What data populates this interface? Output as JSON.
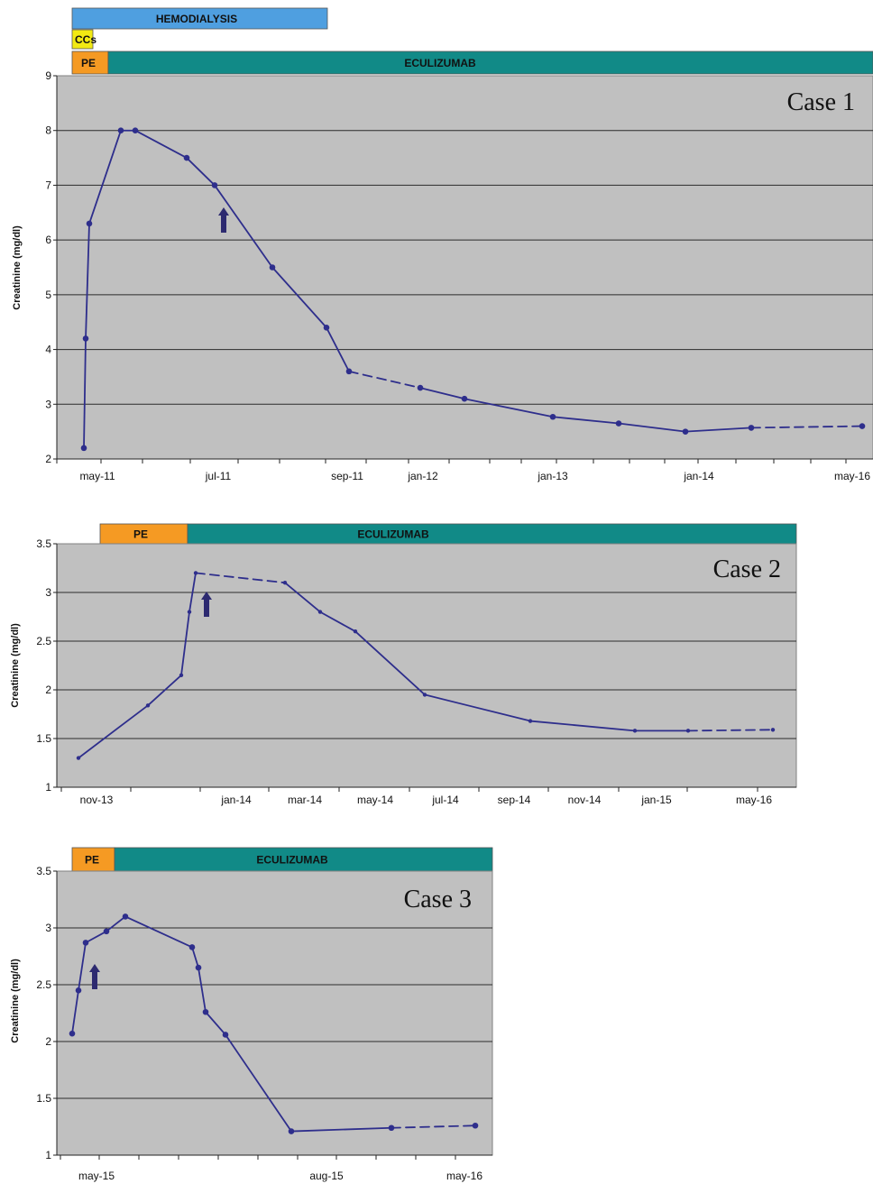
{
  "colors": {
    "plot_bg": "#c0c0c0",
    "line": "#2e2e8c",
    "grid": "#2b2b2b",
    "hemodialysis": "#4f9fe0",
    "ccs": "#f2ea12",
    "pe": "#f59a23",
    "eculizumab": "#118a87",
    "arrow": "#2d2a70"
  },
  "chart_data": [
    {
      "type": "line",
      "case_label": "Case 1",
      "ylabel": "Creatinine (mg/dl)",
      "ylim": [
        2,
        9
      ],
      "yticks": [
        "2",
        "3",
        "4",
        "5",
        "6",
        "7",
        "8",
        "9"
      ],
      "xtick_labels": [
        "may-11",
        "jul-11",
        "sep-11",
        "jan-12",
        "jan-13",
        "jan-14",
        "may-16"
      ],
      "treatment_bars": [
        {
          "label": "HEMODIALYSIS",
          "color": "hemodialysis"
        },
        {
          "label": "CCs",
          "color": "ccs"
        },
        {
          "label": "PE",
          "color": "pe"
        },
        {
          "label": "ECULIZUMAB",
          "color": "eculizumab"
        }
      ],
      "series": [
        {
          "values": [
            2.2,
            4.2,
            6.3,
            8.0,
            8.0,
            7.5,
            7.0,
            5.5,
            4.4,
            3.6,
            3.3,
            3.1,
            2.77,
            2.65,
            2.5,
            2.57,
            2.6
          ]
        }
      ],
      "dashed_segments": [
        [
          9,
          10
        ],
        [
          15,
          16
        ]
      ],
      "arrow_at_point": 6
    },
    {
      "type": "line",
      "case_label": "Case 2",
      "ylabel": "Creatinine (mg/dl)",
      "ylim": [
        1,
        3.5
      ],
      "yticks": [
        "1",
        "1.5",
        "2",
        "2.5",
        "3",
        "3.5"
      ],
      "xtick_labels": [
        "nov-13",
        "jan-14",
        "mar-14",
        "may-14",
        "jul-14",
        "sep-14",
        "nov-14",
        "jan-15",
        "may-16"
      ],
      "treatment_bars": [
        {
          "label": "PE",
          "color": "pe"
        },
        {
          "label": "ECULIZUMAB",
          "color": "eculizumab"
        }
      ],
      "series": [
        {
          "values": [
            1.3,
            1.84,
            2.15,
            2.8,
            3.2,
            3.1,
            2.8,
            2.6,
            1.95,
            1.68,
            1.58,
            1.58,
            1.59
          ]
        }
      ],
      "dashed_segments": [
        [
          4,
          5
        ],
        [
          11,
          12
        ]
      ],
      "arrow_at_point": 4
    },
    {
      "type": "line",
      "case_label": "Case 3",
      "ylabel": "Creatinine (mg/dl)",
      "ylim": [
        1,
        3.5
      ],
      "yticks": [
        "1",
        "1.5",
        "2",
        "2.5",
        "3",
        "3.5"
      ],
      "xtick_labels": [
        "may-15",
        "aug-15",
        "may-16"
      ],
      "treatment_bars": [
        {
          "label": "PE",
          "color": "pe"
        },
        {
          "label": "ECULIZUMAB",
          "color": "eculizumab"
        }
      ],
      "series": [
        {
          "values": [
            2.07,
            2.45,
            2.87,
            2.97,
            3.1,
            2.83,
            2.65,
            2.26,
            2.06,
            1.21,
            1.24,
            1.26
          ]
        }
      ],
      "dashed_segments": [
        [
          10,
          11
        ]
      ],
      "arrow_at_point": 2
    }
  ]
}
